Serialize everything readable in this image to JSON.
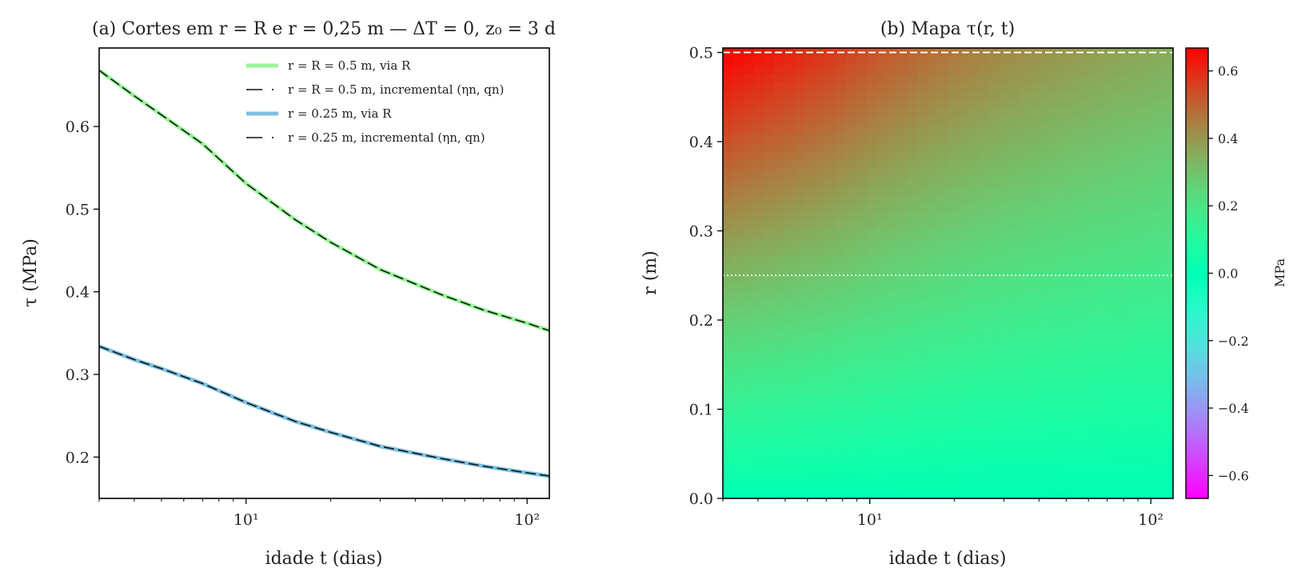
{
  "colors": {
    "series_green": "#98f598",
    "series_blue": "#7ec3e4",
    "incremental": "#111111",
    "axis": "#000000"
  },
  "chart_data": [
    {
      "type": "line",
      "title": "(a) Cortes em r = R e r = 0,25 m — ΔT = 0, z₀ = 3 d",
      "xlabel": "idade t (dias)",
      "ylabel": "τ (MPa)",
      "x_scale": "log",
      "xlim": [
        3,
        120
      ],
      "ylim": [
        0.15,
        0.695
      ],
      "x_ticks": [
        {
          "v": 10,
          "label": "10¹"
        },
        {
          "v": 100,
          "label": "10²"
        }
      ],
      "y_ticks": [
        {
          "v": 0.2,
          "label": "0.2"
        },
        {
          "v": 0.3,
          "label": "0.3"
        },
        {
          "v": 0.4,
          "label": "0.4"
        },
        {
          "v": 0.5,
          "label": "0.5"
        },
        {
          "v": 0.6,
          "label": "0.6"
        }
      ],
      "legend_position": "top-right",
      "x": [
        3,
        4,
        5,
        7,
        10,
        15,
        20,
        30,
        50,
        70,
        100,
        120
      ],
      "series": [
        {
          "name": "r = R = 0.5 m, via R",
          "style": "solid-thick",
          "color": "#98f598",
          "values": [
            0.668,
            0.637,
            0.614,
            0.579,
            0.531,
            0.487,
            0.46,
            0.427,
            0.396,
            0.378,
            0.362,
            0.353
          ]
        },
        {
          "name": "r = R = 0.5 m, incremental (ηn, qn)",
          "style": "dashed",
          "color": "#111111",
          "values": [
            0.668,
            0.637,
            0.614,
            0.579,
            0.531,
            0.487,
            0.46,
            0.427,
            0.396,
            0.378,
            0.362,
            0.353
          ]
        },
        {
          "name": "r = 0.25 m, via R",
          "style": "solid-thick",
          "color": "#7ec3e4",
          "values": [
            0.334,
            0.318,
            0.307,
            0.289,
            0.266,
            0.243,
            0.23,
            0.213,
            0.198,
            0.189,
            0.181,
            0.177
          ]
        },
        {
          "name": "r = 0.25 m, incremental (ηn, qn)",
          "style": "dashed",
          "color": "#111111",
          "values": [
            0.334,
            0.318,
            0.307,
            0.289,
            0.266,
            0.243,
            0.23,
            0.213,
            0.198,
            0.189,
            0.181,
            0.177
          ]
        }
      ]
    },
    {
      "type": "heatmap",
      "title": "(b) Mapa τ(r, t)",
      "xlabel": "idade t (dias)",
      "ylabel": "r (m)",
      "x_scale": "log",
      "xlim": [
        3,
        120
      ],
      "ylim": [
        0,
        0.505
      ],
      "x_ticks": [
        {
          "v": 10,
          "label": "10¹"
        },
        {
          "v": 100,
          "label": "10²"
        }
      ],
      "y_ticks": [
        {
          "v": 0.0,
          "label": "0.0"
        },
        {
          "v": 0.1,
          "label": "0.1"
        },
        {
          "v": 0.2,
          "label": "0.2"
        },
        {
          "v": 0.3,
          "label": "0.3"
        },
        {
          "v": 0.4,
          "label": "0.4"
        },
        {
          "v": 0.5,
          "label": "0.5"
        }
      ],
      "model": "tau(r,t) = tau_R(t) * r / R",
      "R": 0.5,
      "t": [
        3,
        4,
        5,
        7,
        10,
        15,
        20,
        30,
        50,
        70,
        100,
        120
      ],
      "tau_R": [
        0.668,
        0.637,
        0.614,
        0.579,
        0.531,
        0.487,
        0.46,
        0.427,
        0.396,
        0.378,
        0.362,
        0.353
      ],
      "reference_lines": [
        {
          "r": 0.5,
          "style": "dashed",
          "color": "#ffffff"
        },
        {
          "r": 0.25,
          "style": "dotted",
          "color": "#ffffff"
        }
      ],
      "colorbar": {
        "label": "MPa",
        "range": [
          -0.668,
          0.668
        ],
        "colormap": "rainbow",
        "ticks": [
          {
            "v": -0.6,
            "label": "−0.6"
          },
          {
            "v": -0.4,
            "label": "−0.4"
          },
          {
            "v": -0.2,
            "label": "−0.2"
          },
          {
            "v": 0.0,
            "label": "0.0"
          },
          {
            "v": 0.2,
            "label": "0.2"
          },
          {
            "v": 0.4,
            "label": "0.4"
          },
          {
            "v": 0.6,
            "label": "0.6"
          }
        ]
      }
    }
  ]
}
